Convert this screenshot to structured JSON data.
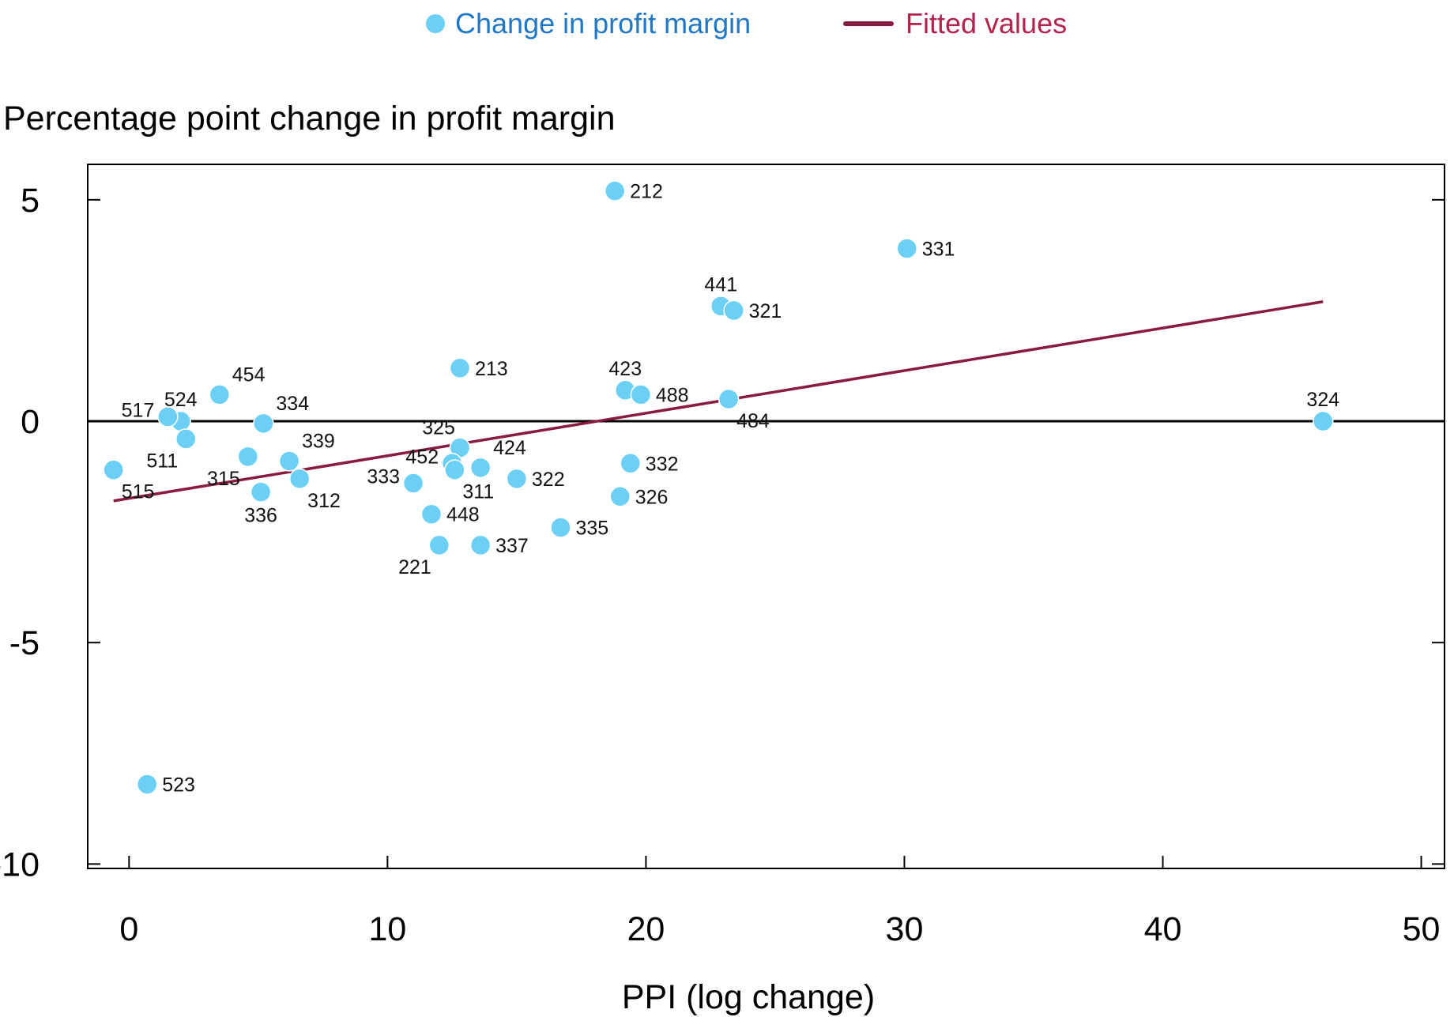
{
  "chart_data": {
    "type": "scatter",
    "title": "Percentage point change in profit margin",
    "xlabel": "PPI (log change)",
    "ylabel": "Percentage point change in profit margin",
    "xlim": [
      -1.6,
      50.9
    ],
    "ylim": [
      -10.1,
      5.8
    ],
    "xticks": [
      0,
      10,
      20,
      30,
      40,
      50
    ],
    "yticks": [
      5,
      0,
      -5,
      -10
    ],
    "xtick_labels": [
      "0",
      "10",
      "20",
      "30",
      "40",
      "50"
    ],
    "ytick_labels": [
      "5",
      "0",
      "-5",
      "-10"
    ],
    "legend": {
      "placement": "top-center",
      "entries": [
        {
          "name": "Change in profit margin",
          "marker": "circle",
          "color": "#6CCFF6",
          "text_color": "#1F77C8"
        },
        {
          "name": "Fitted values",
          "marker": "line",
          "color": "#8B1A3F",
          "text_color": "#B5234C"
        }
      ]
    },
    "series": [
      {
        "name": "Change in profit margin",
        "color": "#6CCFF6",
        "points": [
          {
            "label": "212",
            "x": 18.8,
            "y": 5.2,
            "label_pos": "right"
          },
          {
            "label": "331",
            "x": 30.1,
            "y": 3.9,
            "label_pos": "right"
          },
          {
            "label": "441",
            "x": 22.9,
            "y": 2.6,
            "label_pos": "above"
          },
          {
            "label": "321",
            "x": 23.4,
            "y": 2.5,
            "label_pos": "right"
          },
          {
            "label": "213",
            "x": 12.8,
            "y": 1.2,
            "label_pos": "right"
          },
          {
            "label": "423",
            "x": 19.2,
            "y": 0.7,
            "label_pos": "above"
          },
          {
            "label": "488",
            "x": 19.8,
            "y": 0.6,
            "label_pos": "right"
          },
          {
            "label": "484",
            "x": 23.2,
            "y": 0.5,
            "label_pos": "below-right"
          },
          {
            "label": "324",
            "x": 46.2,
            "y": 0.0,
            "label_pos": "above"
          },
          {
            "label": "454",
            "x": 3.5,
            "y": 0.6,
            "label_pos": "above-right"
          },
          {
            "label": "524",
            "x": 2.0,
            "y": 0.0,
            "label_pos": "above"
          },
          {
            "label": "517",
            "x": 1.5,
            "y": 0.1,
            "label_pos": "left"
          },
          {
            "label": "334",
            "x": 5.2,
            "y": -0.05,
            "label_pos": "above-right"
          },
          {
            "label": "511",
            "x": 2.2,
            "y": -0.4,
            "label_pos": "below-left"
          },
          {
            "label": "515",
            "x": -0.6,
            "y": -1.1,
            "label_pos": "below-right"
          },
          {
            "label": "315",
            "x": 4.6,
            "y": -0.8,
            "label_pos": "below-left"
          },
          {
            "label": "339",
            "x": 6.2,
            "y": -0.9,
            "label_pos": "above-right"
          },
          {
            "label": "336",
            "x": 5.1,
            "y": -1.6,
            "label_pos": "below"
          },
          {
            "label": "312",
            "x": 6.6,
            "y": -1.3,
            "label_pos": "below-right"
          },
          {
            "label": "325",
            "x": 12.8,
            "y": -0.6,
            "label_pos": "above-left"
          },
          {
            "label": "424",
            "x": 13.6,
            "y": -1.05,
            "label_pos": "above-right"
          },
          {
            "label": "452",
            "x": 12.5,
            "y": -0.95,
            "label_pos": "left"
          },
          {
            "label": "311",
            "x": 12.6,
            "y": -1.1,
            "label_pos": "below-right"
          },
          {
            "label": "333",
            "x": 11.0,
            "y": -1.4,
            "label_pos": "left"
          },
          {
            "label": "322",
            "x": 15.0,
            "y": -1.3,
            "label_pos": "right"
          },
          {
            "label": "332",
            "x": 19.4,
            "y": -0.95,
            "label_pos": "right"
          },
          {
            "label": "326",
            "x": 19.0,
            "y": -1.7,
            "label_pos": "right"
          },
          {
            "label": "448",
            "x": 11.7,
            "y": -2.1,
            "label_pos": "right"
          },
          {
            "label": "335",
            "x": 16.7,
            "y": -2.4,
            "label_pos": "right"
          },
          {
            "label": "221",
            "x": 12.0,
            "y": -2.8,
            "label_pos": "below-left"
          },
          {
            "label": "337",
            "x": 13.6,
            "y": -2.8,
            "label_pos": "right"
          },
          {
            "label": "523",
            "x": 0.7,
            "y": -8.2,
            "label_pos": "right"
          }
        ]
      },
      {
        "name": "Fitted values",
        "type": "line",
        "color": "#8B1A3F",
        "x": [
          -0.6,
          46.2
        ],
        "y": [
          -1.8,
          2.7
        ]
      }
    ],
    "reference_line": {
      "y": 0,
      "color": "#000000"
    }
  }
}
